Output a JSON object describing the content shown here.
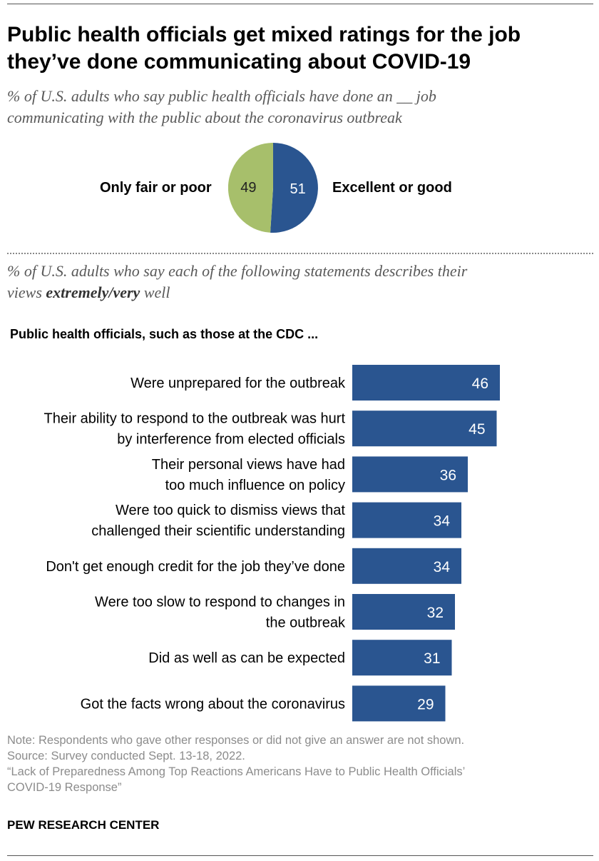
{
  "title_line1": "Public health officials get mixed ratings for the job",
  "title_line2": "they’ve done communicating about COVID-19",
  "subtitle1_line1": "% of U.S. adults who say public health officials have done an __ job",
  "subtitle1_line2": "communicating with the public about the coronavirus outbreak",
  "subtitle2_line1": "% of U.S. adults who say each of the following statements describes their",
  "subtitle2_line2_prefix": "views ",
  "subtitle2_line2_bold": "extremely/very",
  "subtitle2_line2_suffix": " well",
  "bar_header": "Public health officials, such as those at the CDC ...",
  "colors": {
    "blue": "#2a5590",
    "green": "#a7bf6b"
  },
  "chart_data": [
    {
      "type": "pie",
      "categories": [
        "Only fair or poor",
        "Excellent or good"
      ],
      "values": [
        49,
        51
      ],
      "colors": [
        "#a7bf6b",
        "#2a5590"
      ]
    },
    {
      "type": "bar",
      "orientation": "horizontal",
      "categories": [
        [
          "Were unprepared for the outbreak"
        ],
        [
          "Their ability to respond to the outbreak was hurt",
          "by interference from elected officials"
        ],
        [
          "Their personal views have had",
          "too much influence on policy"
        ],
        [
          "Were too quick to dismiss views that",
          "challenged their scientific understanding"
        ],
        [
          "Don't get enough credit for the job they’ve done"
        ],
        [
          "Were too slow to respond to changes in",
          "the outbreak"
        ],
        [
          "Did as well as can be expected"
        ],
        [
          "Got the facts wrong about the coronavirus"
        ]
      ],
      "values": [
        46,
        45,
        36,
        34,
        34,
        32,
        31,
        29
      ],
      "color": "#2a5590"
    }
  ],
  "notes": {
    "note": "Note: Respondents who gave other responses or did not give an answer are not shown.",
    "source": "Source: Survey conducted Sept. 13-18, 2022.",
    "report_line1": "“Lack of Preparedness Among Top Reactions Americans Have to Public Health Officials’",
    "report_line2": "COVID-19 Response”"
  },
  "brand": "PEW RESEARCH CENTER"
}
